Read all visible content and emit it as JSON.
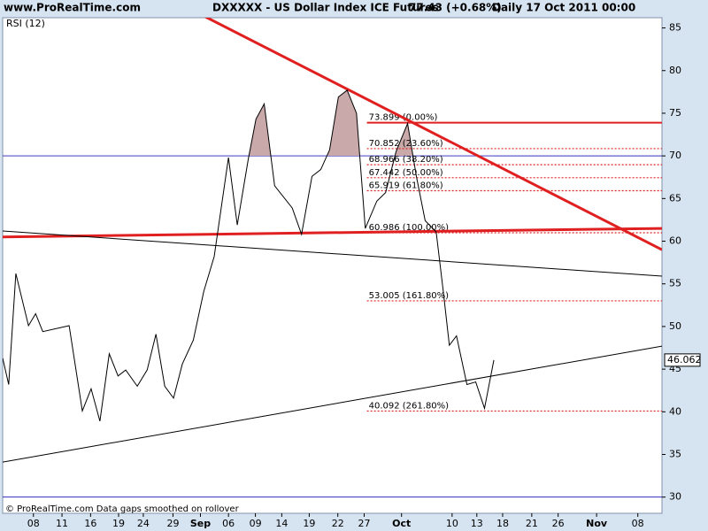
{
  "chart_data": {
    "type": "line",
    "site": "www.ProRealTime.com",
    "title": "DXXXXX - US Dollar Index ICE Futures",
    "price": "77.43 (+0.68%)",
    "period": "Daily  17 Oct 2011 00:00",
    "indicator": "RSI (12)",
    "footer": "© ProRealTime.com  Data gaps smoothed on rollover",
    "x": [
      0,
      1.1,
      2.4,
      4.7,
      6.0,
      7.3,
      12.1,
      14.5,
      16.1,
      17.7,
      19.4,
      21.0,
      22.4,
      24.5,
      26.3,
      27.9,
      29.5,
      31.1,
      32.7,
      34.7,
      36.6,
      38.5,
      41.1,
      42.7,
      44.7,
      46.1,
      47.6,
      49.5,
      52.7,
      54.4,
      56.3,
      57.9,
      59.5,
      61.1,
      62.7,
      64.4,
      66.0,
      68.1,
      69.7,
      71.6,
      73.7,
      75.3,
      76.9,
      78.9,
      80.2,
      81.3,
      82.6,
      84.5,
      86.1,
      87.7,
      89.4
    ],
    "series": [
      {
        "name": "RSI (12)",
        "color": "#000000",
        "values": [
          46.3,
          43.2,
          56.2,
          50.1,
          51.5,
          49.4,
          50.1,
          40.1,
          42.7,
          38.9,
          46.8,
          44.2,
          44.9,
          43.0,
          44.9,
          49.1,
          43.0,
          41.6,
          45.6,
          48.4,
          54.1,
          58.2,
          69.8,
          61.9,
          69.6,
          74.3,
          76.1,
          66.5,
          63.9,
          60.8,
          67.6,
          68.4,
          70.7,
          76.9,
          77.7,
          75.0,
          61.5,
          64.7,
          65.7,
          70.5,
          73.8,
          67.6,
          62.4,
          61.1,
          54.1,
          47.8,
          48.9,
          43.2,
          43.5,
          40.4,
          46.062
        ]
      }
    ],
    "shade_color": "#c9a9a9",
    "xlim": [
      0,
      120
    ],
    "ylim": [
      28.1,
      86.2
    ],
    "xticks": [
      {
        "value": 5.6,
        "label": "08"
      },
      {
        "value": 10.8,
        "label": "11"
      },
      {
        "value": 16,
        "label": "16"
      },
      {
        "value": 21.1,
        "label": "19"
      },
      {
        "value": 25.6,
        "label": "24"
      },
      {
        "value": 31,
        "label": "29"
      },
      {
        "value": 36,
        "label": "Sep"
      },
      {
        "value": 41.1,
        "label": "06"
      },
      {
        "value": 46,
        "label": "09"
      },
      {
        "value": 50.8,
        "label": "14"
      },
      {
        "value": 55.8,
        "label": "19"
      },
      {
        "value": 61,
        "label": "22"
      },
      {
        "value": 65.8,
        "label": "27"
      },
      {
        "value": 72.6,
        "label": "Oct"
      },
      {
        "value": 81.8,
        "label": "10"
      },
      {
        "value": 86.3,
        "label": "13"
      },
      {
        "value": 91,
        "label": "18"
      },
      {
        "value": 96.3,
        "label": "21"
      },
      {
        "value": 101.1,
        "label": "26"
      },
      {
        "value": 108.1,
        "label": "Nov"
      },
      {
        "value": 115.6,
        "label": "08"
      }
    ],
    "yticks": [
      30,
      35,
      40,
      45,
      50,
      55,
      60,
      65,
      70,
      75,
      80,
      85
    ],
    "levels": [
      70,
      30
    ],
    "level_color": "#3030c0",
    "fib_color": "#e02020",
    "fib_start": 66.3,
    "fib": [
      {
        "value": 73.899,
        "label": "73.899 (0.00%)"
      },
      {
        "value": 70.852,
        "label": "70.852 (23.60%)"
      },
      {
        "value": 68.966,
        "label": "68.966 (38.20%)"
      },
      {
        "value": 67.442,
        "label": "67.442 (50.00%)"
      },
      {
        "value": 65.919,
        "label": "65.919 (61.80%)"
      },
      {
        "value": 60.986,
        "label": "60.986 (100.00%)"
      },
      {
        "value": 53.005,
        "label": "53.005 (161.80%)"
      },
      {
        "value": 40.092,
        "label": "40.092 (261.80%)"
      }
    ],
    "trendlines": [
      {
        "color": "#e02020",
        "width": 3,
        "points": [
          36.3,
          86.5,
          120,
          59.0
        ]
      },
      {
        "color": "#e02020",
        "width": 3,
        "points": [
          0,
          60.5,
          120,
          61.5
        ]
      },
      {
        "color": "#000000",
        "width": 1,
        "points": [
          0,
          61.2,
          120,
          55.9
        ]
      },
      {
        "color": "#000000",
        "width": 1,
        "points": [
          0,
          34.1,
          120,
          47.7
        ]
      }
    ]
  }
}
